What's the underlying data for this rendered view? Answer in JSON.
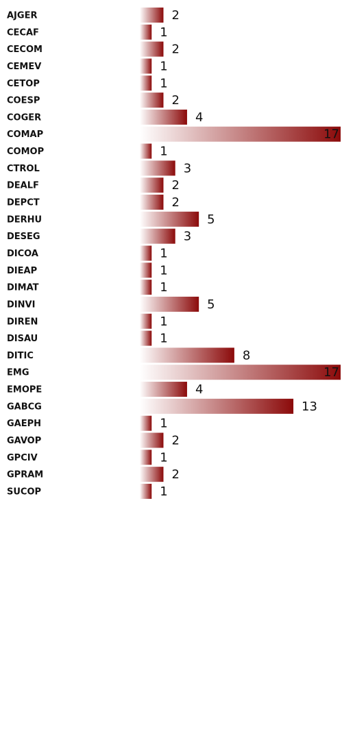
{
  "chart_data": {
    "type": "bar",
    "orientation": "horizontal",
    "color": "#8b0a0a",
    "categories": [
      "AJGER",
      "CECAF",
      "CECOM",
      "CEMEV",
      "CETOP",
      "COESP",
      "COGER",
      "COMAP",
      "COMOP",
      "CTROL",
      "DEALF",
      "DEPCT",
      "DERHU",
      "DESEG",
      "DICOA",
      "DIEAP",
      "DIMAT",
      "DINVI",
      "DIREN",
      "DISAU",
      "DITIC",
      "EMG",
      "EMOPE",
      "GABCG",
      "GAEPH",
      "GAVOP",
      "GPCIV",
      "GPRAM",
      "SUCOP"
    ],
    "values": [
      2,
      1,
      2,
      1,
      1,
      2,
      4,
      17,
      1,
      3,
      2,
      2,
      5,
      3,
      1,
      1,
      1,
      5,
      1,
      1,
      8,
      17,
      4,
      13,
      1,
      2,
      1,
      2,
      1
    ]
  }
}
